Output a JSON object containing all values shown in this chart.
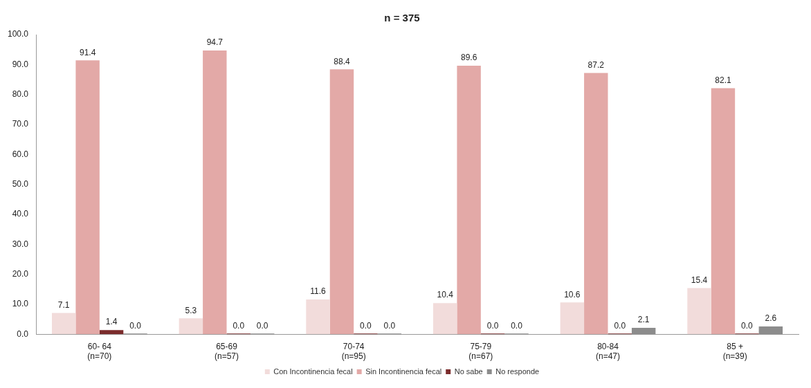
{
  "chart_data": {
    "type": "bar",
    "title": "n = 375",
    "categories": [
      "60- 64\n(n=70)",
      "65-69\n(n=57)",
      "70-74\n(n=95)",
      "75-79\n(n=67)",
      "80-84\n(n=47)",
      "85 +\n(n=39)"
    ],
    "series": [
      {
        "name": "Con Incontinencia fecal",
        "color": "#f2dcdb",
        "values": [
          7.1,
          5.3,
          11.6,
          10.4,
          10.6,
          15.4
        ],
        "value_labels": [
          "7.1",
          "5.3",
          "11.6",
          "10.4",
          "10.6",
          "15.4"
        ]
      },
      {
        "name": "Sin Incontinencia fecal",
        "color": "#e3a9a7",
        "values": [
          91.4,
          94.7,
          88.4,
          89.6,
          87.2,
          82.1
        ],
        "value_labels": [
          "91.4",
          "94.7",
          "88.4",
          "89.6",
          "87.2",
          "82.1"
        ]
      },
      {
        "name": "No sabe",
        "color": "#7b2c2c",
        "values": [
          1.4,
          0,
          0,
          0,
          0,
          0
        ],
        "value_labels": [
          "1.4",
          "0.0",
          "0.0",
          "0.0",
          "0.0",
          "0.0"
        ]
      },
      {
        "name": "No responde",
        "color": "#8c8c8c",
        "values": [
          0,
          0,
          0,
          0,
          2.1,
          2.6
        ],
        "value_labels": [
          "0.0",
          "0.0",
          "0.0",
          "0.0",
          "2.1",
          "2.6"
        ]
      }
    ],
    "ylim": [
      0,
      100
    ],
    "yticks": [
      {
        "value": 0,
        "label": "0.0"
      },
      {
        "value": 10,
        "label": "10.0"
      },
      {
        "value": 20,
        "label": "20.0"
      },
      {
        "value": 30,
        "label": "30.0"
      },
      {
        "value": 40,
        "label": "40.0"
      },
      {
        "value": 50,
        "label": "50.0"
      },
      {
        "value": 60,
        "label": "60.0"
      },
      {
        "value": 70,
        "label": "70.0"
      },
      {
        "value": 80,
        "label": "80.0"
      },
      {
        "value": 90,
        "label": "90.0"
      },
      {
        "value": 100,
        "label": "100.0"
      }
    ],
    "grid": false,
    "legend": "bottom"
  }
}
